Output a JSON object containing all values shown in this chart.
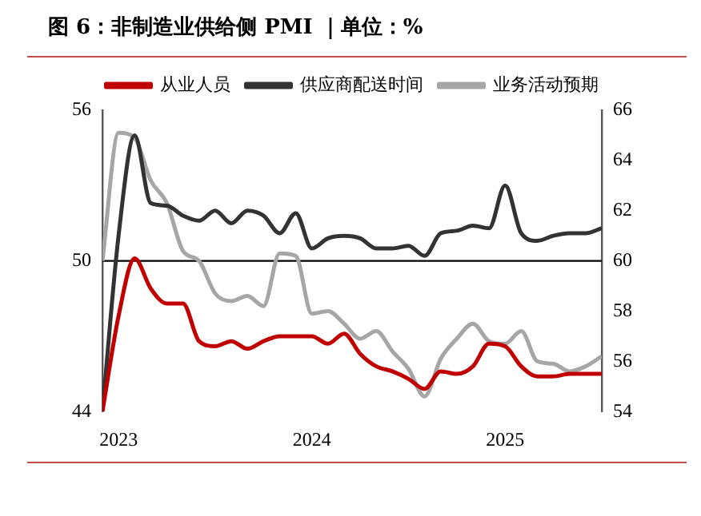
{
  "chart_data": {
    "type": "line",
    "title": "图 6：非制造业供给侧 PMI ｜单位：%",
    "x": [
      "2022-12",
      "2023-01",
      "2023-02",
      "2023-03",
      "2023-04",
      "2023-05",
      "2023-06",
      "2023-07",
      "2023-08",
      "2023-09",
      "2023-10",
      "2023-11",
      "2023-12",
      "2024-01",
      "2024-02",
      "2024-03",
      "2024-04",
      "2024-05",
      "2024-06",
      "2024-07",
      "2024-08",
      "2024-09",
      "2024-10",
      "2024-11",
      "2024-12",
      "2025-01",
      "2025-02",
      "2025-03",
      "2025-04",
      "2025-05",
      "2025-06",
      "2025-07"
    ],
    "series": [
      {
        "name": "从业人员",
        "color": "#c00000",
        "values": [
          44.0,
          47.8,
          50.1,
          48.9,
          48.3,
          48.3,
          46.8,
          46.6,
          46.8,
          46.5,
          46.8,
          47.0,
          47.0,
          47.0,
          46.7,
          47.1,
          46.3,
          45.8,
          45.6,
          45.3,
          44.9,
          45.6,
          45.5,
          45.8,
          46.7,
          46.6,
          45.8,
          45.4,
          45.4,
          45.5,
          45.5,
          45.5
        ]
      },
      {
        "name": "供应商配送时间",
        "color": "#333333",
        "values": [
          44.0,
          51.0,
          55.0,
          52.3,
          52.2,
          51.8,
          51.6,
          52.0,
          51.5,
          52.0,
          51.8,
          51.1,
          51.9,
          50.5,
          50.9,
          51.0,
          50.9,
          50.5,
          50.5,
          50.6,
          50.2,
          51.1,
          51.2,
          51.4,
          51.3,
          53.0,
          51.1,
          50.8,
          51.0,
          51.1,
          51.1,
          51.3
        ]
      },
      {
        "name": "业务活动预期",
        "color": "#a6a6a6",
        "axis": "y2",
        "values": [
          60.0,
          65.1,
          64.9,
          63.2,
          62.3,
          60.4,
          60.0,
          58.7,
          58.4,
          58.6,
          58.2,
          60.3,
          60.2,
          57.9,
          58.0,
          57.5,
          56.9,
          57.2,
          56.4,
          55.7,
          54.6,
          56.1,
          56.9,
          57.5,
          56.8,
          56.7,
          57.2,
          56.0,
          55.9,
          55.6,
          55.8,
          56.2
        ]
      }
    ],
    "xlim": [
      "2022-12",
      "2025-07"
    ],
    "xticks": [
      {
        "value": "2023-01",
        "label": "2023"
      },
      {
        "value": "2024-01",
        "label": "2024"
      },
      {
        "value": "2025-01",
        "label": "2025"
      }
    ],
    "ylim": [
      44,
      56
    ],
    "yticks": [
      44,
      50,
      56
    ],
    "y2lim": [
      54,
      66
    ],
    "y2ticks": [
      54,
      56,
      58,
      60,
      62,
      64,
      66
    ],
    "ref_lines": [
      {
        "axis": "y",
        "value": 50,
        "color": "#000000"
      }
    ],
    "legend": "top",
    "grid": false,
    "marker": "none",
    "line_style": "solid"
  }
}
